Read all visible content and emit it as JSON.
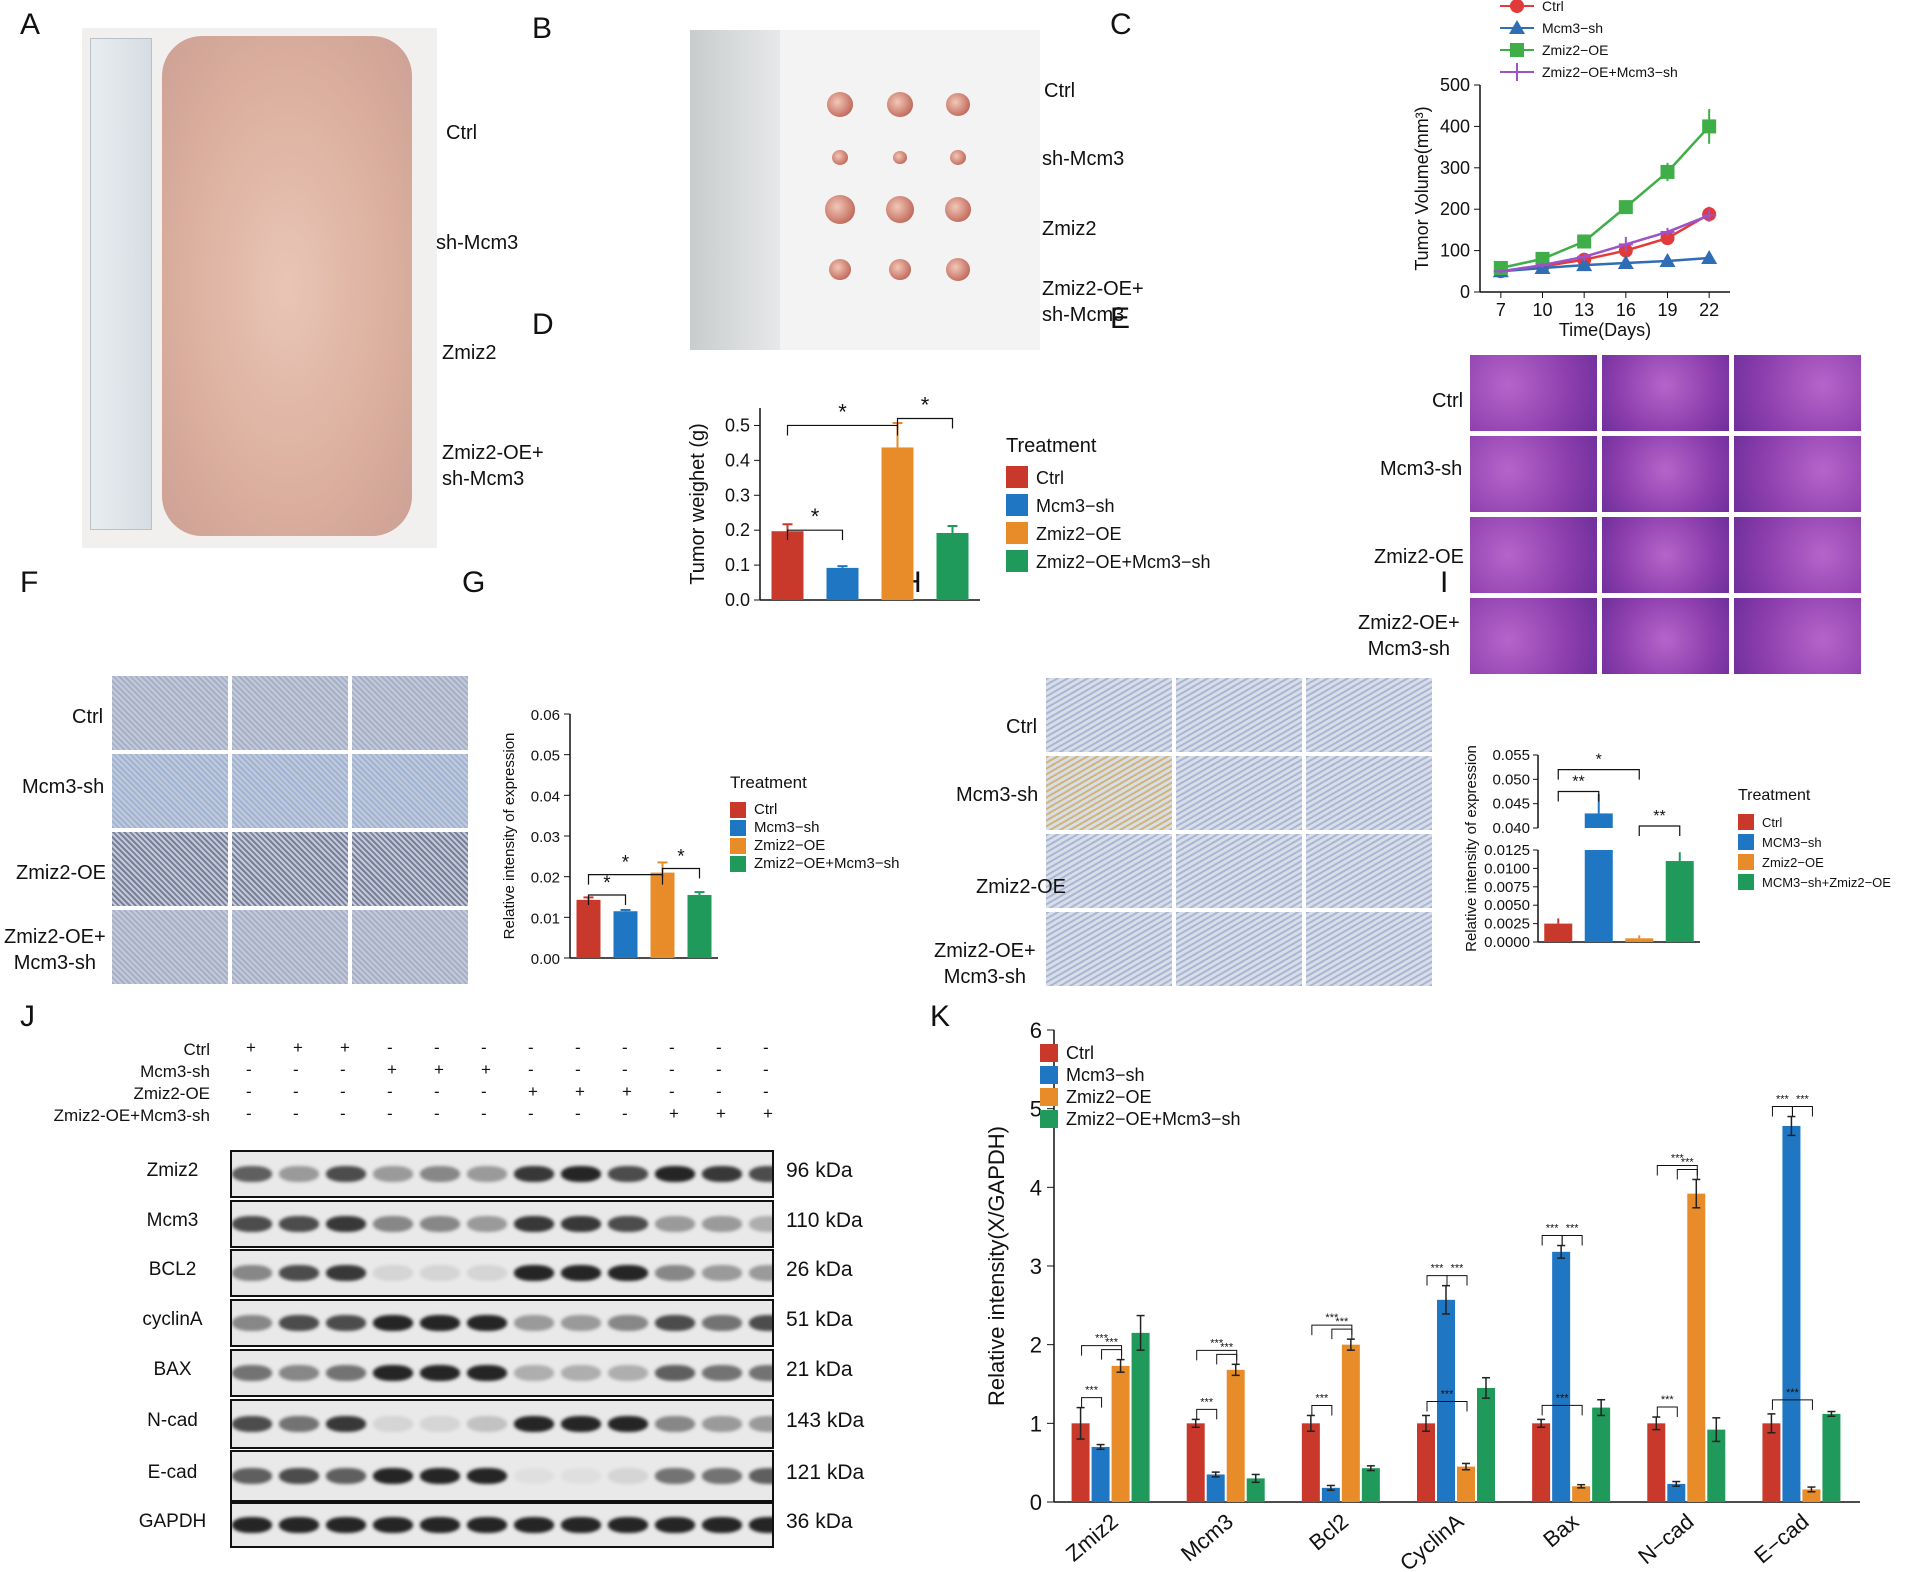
{
  "panel_labels": [
    "A",
    "B",
    "C",
    "D",
    "E",
    "F",
    "G",
    "H",
    "I",
    "J",
    "K"
  ],
  "panel_a": {
    "labels": [
      "Ctrl",
      "sh-Mcm3",
      "Zmiz2",
      "Zmiz2-OE+\nsh-Mcm3"
    ]
  },
  "panel_b": {
    "labels": [
      "Ctrl",
      "sh-Mcm3",
      "Zmiz2",
      "Zmiz2-OE+\nsh-Mcm3"
    ]
  },
  "panel_e": {
    "row_labels": [
      "Ctrl",
      "Mcm3-sh",
      "Zmiz2-OE",
      "Zmiz2-OE+\nMcm3-sh"
    ]
  },
  "panel_f": {
    "row_labels": [
      "Ctrl",
      "Mcm3-sh",
      "Zmiz2-OE",
      "Zmiz2-OE+\nMcm3-sh"
    ]
  },
  "panel_h": {
    "row_labels": [
      "Ctrl",
      "Mcm3-sh",
      "Zmiz2-OE",
      "Zmiz2-OE+\nMcm3-sh"
    ]
  },
  "colors": {
    "ctrl": "#c8392b",
    "mcm3": "#1f77c4",
    "zmiz2": "#e88c2a",
    "combo": "#1f9a5a",
    "blue_tri": "#2f6db5",
    "green_sq": "#3fae49",
    "purple": "#9d52c7"
  },
  "panel_j": {
    "conditions": [
      {
        "name": "Ctrl",
        "marks": [
          "+",
          "+",
          "+",
          "-",
          "-",
          "-",
          "-",
          "-",
          "-",
          "-",
          "-",
          "-"
        ]
      },
      {
        "name": "Mcm3-sh",
        "marks": [
          "-",
          "-",
          "-",
          "+",
          "+",
          "+",
          "-",
          "-",
          "-",
          "-",
          "-",
          "-"
        ]
      },
      {
        "name": "Zmiz2-OE",
        "marks": [
          "-",
          "-",
          "-",
          "-",
          "-",
          "-",
          "+",
          "+",
          "+",
          "-",
          "-",
          "-"
        ]
      },
      {
        "name": "Zmiz2-OE+Mcm3-sh",
        "marks": [
          "-",
          "-",
          "-",
          "-",
          "-",
          "-",
          "-",
          "-",
          "-",
          "+",
          "+",
          "+"
        ]
      }
    ],
    "blots": [
      {
        "name": "Zmiz2",
        "kda": "96 kDa"
      },
      {
        "name": "Mcm3",
        "kda": "110 kDa"
      },
      {
        "name": "BCL2",
        "kda": "26 kDa"
      },
      {
        "name": "cyclinA",
        "kda": "51 kDa"
      },
      {
        "name": "BAX",
        "kda": "21 kDa"
      },
      {
        "name": "N-cad",
        "kda": "143 kDa"
      },
      {
        "name": "E-cad",
        "kda": "121 kDa"
      },
      {
        "name": "GAPDH",
        "kda": "36 kDa"
      }
    ]
  },
  "chart_data": [
    {
      "panel": "C",
      "type": "line",
      "xlabel": "Time(Days)",
      "ylabel": "Tumor Volume(mm³)",
      "x": [
        7,
        10,
        13,
        16,
        19,
        22
      ],
      "xticks": [
        "7",
        "10",
        "13",
        "16",
        "19",
        "22"
      ],
      "yticks": [
        "0",
        "100",
        "200",
        "300",
        "400",
        "500"
      ],
      "ylim": [
        0,
        500
      ],
      "legend_position": "top",
      "series": [
        {
          "name": "Ctrl",
          "marker": "circle",
          "color": "#e23a3a",
          "values": [
            50,
            62,
            78,
            100,
            130,
            188
          ],
          "err": [
            5,
            6,
            6,
            8,
            8,
            18
          ]
        },
        {
          "name": "Mcm3−sh",
          "marker": "triangle",
          "color": "#2f6db5",
          "values": [
            50,
            58,
            65,
            70,
            75,
            82
          ],
          "err": [
            3,
            4,
            4,
            4,
            4,
            5
          ]
        },
        {
          "name": "Zmiz2−OE",
          "marker": "square",
          "color": "#3fae49",
          "values": [
            58,
            80,
            122,
            205,
            290,
            400
          ],
          "err": [
            6,
            8,
            10,
            12,
            22,
            42
          ]
        },
        {
          "name": "Zmiz2−OE+Mcm3−sh",
          "marker": "plus",
          "color": "#9d52c7",
          "values": [
            50,
            65,
            85,
            115,
            145,
            185
          ],
          "err": [
            5,
            6,
            10,
            18,
            10,
            15
          ]
        }
      ]
    },
    {
      "panel": "D",
      "type": "bar",
      "ylabel": "Tumor weighet (g)",
      "legend_title": "Treatment",
      "categories": [
        "Ctrl",
        "Mcm3−sh",
        "Zmiz2−OE",
        "Zmiz2−OE+Mcm3−sh"
      ],
      "values": [
        0.197,
        0.092,
        0.437,
        0.192
      ],
      "err": [
        0.02,
        0.005,
        0.07,
        0.02
      ],
      "yticks": [
        "0.0",
        "0.1",
        "0.2",
        "0.3",
        "0.4",
        "0.5"
      ],
      "ylim": [
        0,
        0.55
      ],
      "significance": [
        "*",
        "*",
        "*"
      ]
    },
    {
      "panel": "G",
      "type": "bar",
      "ylabel": "Relative intensity of expression",
      "legend_title": "Treatment",
      "categories": [
        "Ctrl",
        "Mcm3−sh",
        "Zmiz2−OE",
        "Zmiz2−OE+Mcm3−sh"
      ],
      "values": [
        0.0143,
        0.0115,
        0.021,
        0.0155
      ],
      "err": [
        0.0006,
        0.0003,
        0.0025,
        0.0007
      ],
      "yticks": [
        "0.00",
        "0.01",
        "0.02",
        "0.03",
        "0.04",
        "0.05",
        "0.06"
      ],
      "ylim": [
        0,
        0.06
      ],
      "significance": [
        "*",
        "*",
        "*"
      ]
    },
    {
      "panel": "I",
      "type": "bar",
      "ylabel": "Relative intensity of expression",
      "legend_title": "Treatment",
      "categories": [
        "Ctrl",
        "MCM3−sh",
        "Zmiz2−OE",
        "MCM3−sh+Zmiz2−OE"
      ],
      "values": [
        0.0025,
        0.043,
        0.0005,
        0.011
      ],
      "err": [
        0.0007,
        0.004,
        0.0004,
        0.0012
      ],
      "yticks_lower": [
        "0.0000",
        "0.0025",
        "0.0050",
        "0.0075",
        "0.0100",
        "0.0125"
      ],
      "yticks_upper": [
        "0.040",
        "0.045",
        "0.050",
        "0.055"
      ],
      "broken_axis": true,
      "significance": [
        "**",
        "*",
        "**"
      ]
    },
    {
      "panel": "K",
      "type": "bar",
      "ylabel": "Relative intensity(X/GAPDH)",
      "categories": [
        "Zmiz2",
        "Mcm3",
        "Bcl2",
        "CyclinA",
        "Bax",
        "N−cad",
        "E−cad"
      ],
      "yticks": [
        "0",
        "1",
        "2",
        "3",
        "4",
        "5",
        "6"
      ],
      "ylim": [
        0,
        6
      ],
      "series": [
        {
          "name": "Ctrl",
          "values": [
            1.0,
            1.0,
            1.0,
            1.0,
            1.0,
            1.0,
            1.0
          ],
          "err": [
            0.2,
            0.05,
            0.1,
            0.1,
            0.05,
            0.08,
            0.12
          ]
        },
        {
          "name": "Mcm3−sh",
          "values": [
            0.7,
            0.35,
            0.18,
            2.57,
            3.18,
            0.23,
            4.78
          ],
          "err": [
            0.03,
            0.03,
            0.03,
            0.18,
            0.08,
            0.03,
            0.12
          ]
        },
        {
          "name": "Zmiz2−OE",
          "values": [
            1.73,
            1.68,
            2.0,
            0.45,
            0.2,
            3.92,
            0.16
          ],
          "err": [
            0.08,
            0.07,
            0.07,
            0.04,
            0.02,
            0.18,
            0.03
          ]
        },
        {
          "name": "Zmiz2−OE+Mcm3−sh",
          "values": [
            2.15,
            0.3,
            0.43,
            1.45,
            1.2,
            0.92,
            1.12
          ],
          "err": [
            0.22,
            0.05,
            0.03,
            0.13,
            0.1,
            0.15,
            0.03
          ]
        }
      ],
      "significance_label": "***"
    }
  ]
}
